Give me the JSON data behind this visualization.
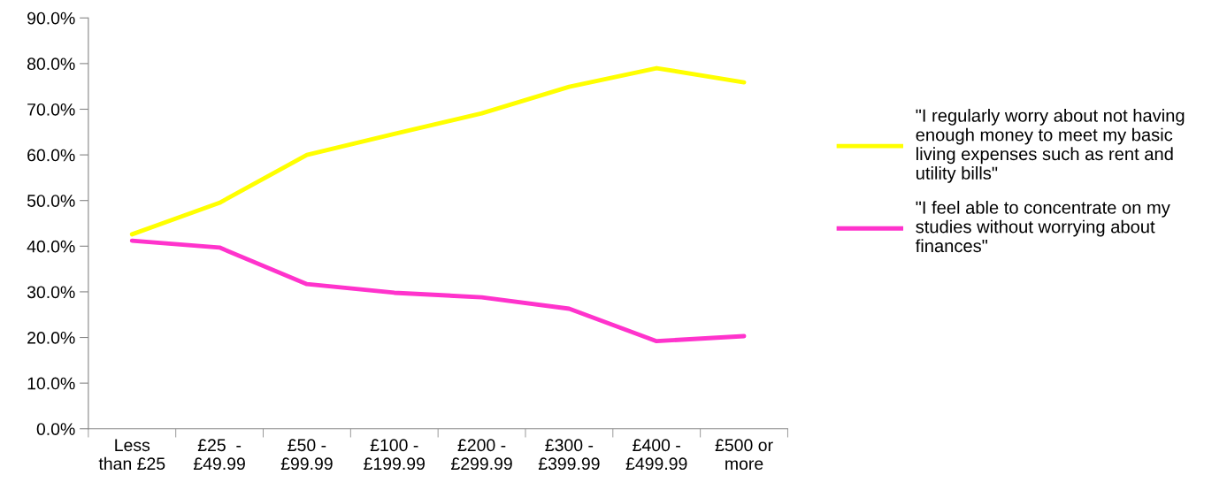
{
  "chart_data": {
    "type": "line",
    "categories": [
      "Less\nthan £25",
      "£25  -\n£49.99",
      "£50 -\n£99.99",
      "£100 -\n£199.99",
      "£200 -\n£299.99",
      "£300 -\n£399.99",
      "£400 -\n£499.99",
      "£500 or\nmore"
    ],
    "series": [
      {
        "name": "\"I regularly worry about not having\nenough money to meet my basic\nliving expenses such as rent and\nutility bills\"",
        "color": "#ffff00",
        "values": [
          42.6,
          49.5,
          60.0,
          64.6,
          69.1,
          74.9,
          79.0,
          75.9
        ]
      },
      {
        "name": "\"I feel able to concentrate on my\nstudies without worrying about\nfinances\"",
        "color": "#ff33cc",
        "values": [
          41.2,
          39.7,
          31.7,
          29.8,
          28.8,
          26.3,
          19.2,
          20.3
        ]
      }
    ],
    "ylim": [
      0,
      90
    ],
    "yticks": [
      {
        "value": 0,
        "label": "0.0%"
      },
      {
        "value": 10,
        "label": "10.0%"
      },
      {
        "value": 20,
        "label": "20.0%"
      },
      {
        "value": 30,
        "label": "30.0%"
      },
      {
        "value": 40,
        "label": "40.0%"
      },
      {
        "value": 50,
        "label": "50.0%"
      },
      {
        "value": 60,
        "label": "60.0%"
      },
      {
        "value": 70,
        "label": "70.0%"
      },
      {
        "value": 80,
        "label": "80.0%"
      },
      {
        "value": 90,
        "label": "90.0%"
      }
    ],
    "grid": false,
    "legend": "right",
    "marker": "none",
    "line_style": "solid"
  }
}
